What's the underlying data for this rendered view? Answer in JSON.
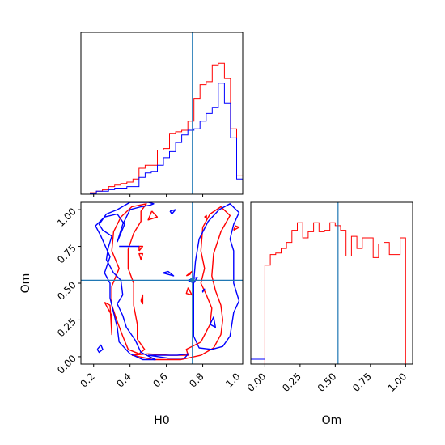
{
  "chart_data": [
    {
      "type": "histogram",
      "panel": "H0 marginal",
      "series": [
        {
          "color": "#ff0000",
          "values": [
            0,
            0.01,
            0.02,
            0.03,
            0.05,
            0.06,
            0.07,
            0.08,
            0.1,
            0.17,
            0.19,
            0.19,
            0.29,
            0.3,
            0.4,
            0.41,
            0.42,
            0.48,
            0.63,
            0.72,
            0.74,
            0.85,
            0.86,
            0.76,
            0.43,
            0.12
          ]
        },
        {
          "color": "#0000ff",
          "values": [
            0,
            0.005,
            0.02,
            0.02,
            0.03,
            0.04,
            0.04,
            0.05,
            0.05,
            0.11,
            0.14,
            0.15,
            0.19,
            0.24,
            0.28,
            0.34,
            0.39,
            0.42,
            0.43,
            0.48,
            0.53,
            0.57,
            0.73,
            0.6,
            0.37,
            0.1
          ]
        }
      ],
      "truth": 0.743
    },
    {
      "type": "contour",
      "panel": "Om vs H0",
      "xlabel": "H0",
      "ylabel": "Om",
      "xticks": [
        "0.2",
        "0.4",
        "0.6",
        "0.8",
        "1.0"
      ],
      "yticks": [
        "0.00",
        "0.25",
        "0.50",
        "0.75",
        "1.00"
      ],
      "xlim": [
        0.13,
        1.02
      ],
      "ylim": [
        -0.05,
        1.05
      ],
      "series": [
        {
          "color": "#ff0000",
          "contours": [
            [
              [
                0.46,
                0.99
              ],
              [
                0.49,
                1.04
              ],
              [
                0.41,
                1.02
              ],
              [
                0.35,
                0.95
              ],
              [
                0.31,
                0.85
              ],
              [
                0.3,
                0.72
              ],
              [
                0.34,
                0.6
              ],
              [
                0.3,
                0.48
              ],
              [
                0.3,
                0.35
              ],
              [
                0.33,
                0.24
              ],
              [
                0.36,
                0.14
              ],
              [
                0.39,
                0.05
              ],
              [
                0.45,
                0.02
              ],
              [
                0.48,
                0.05
              ],
              [
                0.44,
                0.12
              ],
              [
                0.44,
                0.22
              ],
              [
                0.42,
                0.35
              ],
              [
                0.42,
                0.5
              ],
              [
                0.39,
                0.6
              ],
              [
                0.39,
                0.73
              ],
              [
                0.42,
                0.84
              ],
              [
                0.46,
                0.92
              ],
              [
                0.46,
                0.99
              ]
            ],
            [
              [
                0.41,
                0.01
              ],
              [
                0.53,
                -0.02
              ],
              [
                0.68,
                -0.02
              ],
              [
                0.79,
                0.01
              ],
              [
                0.86,
                0.06
              ],
              [
                0.9,
                0.15
              ],
              [
                0.91,
                0.25
              ],
              [
                0.9,
                0.35
              ],
              [
                0.87,
                0.45
              ],
              [
                0.85,
                0.55
              ],
              [
                0.86,
                0.7
              ],
              [
                0.9,
                0.85
              ],
              [
                0.95,
                0.96
              ],
              [
                0.9,
                1.02
              ],
              [
                0.84,
                0.97
              ],
              [
                0.8,
                0.88
              ],
              [
                0.79,
                0.72
              ],
              [
                0.81,
                0.6
              ],
              [
                0.79,
                0.5
              ],
              [
                0.82,
                0.42
              ],
              [
                0.85,
                0.33
              ],
              [
                0.84,
                0.22
              ],
              [
                0.79,
                0.1
              ],
              [
                0.71,
                0.05
              ],
              [
                0.72,
                0.01
              ],
              [
                0.62,
                0.01
              ],
              [
                0.5,
                0.02
              ],
              [
                0.41,
                0.01
              ]
            ],
            [
              [
                0.26,
                0.37
              ],
              [
                0.3,
                0.28
              ],
              [
                0.3,
                0.15
              ],
              [
                0.29,
                0.35
              ],
              [
                0.26,
                0.37
              ]
            ],
            [
              [
                0.81,
                0.95
              ],
              [
                0.82,
                0.96
              ],
              [
                0.82,
                0.94
              ],
              [
                0.81,
                0.95
              ]
            ],
            [
              [
                0.97,
                0.86
              ],
              [
                1.0,
                0.88
              ],
              [
                0.98,
                0.89
              ],
              [
                0.97,
                0.86
              ]
            ],
            [
              [
                0.52,
                0.99
              ],
              [
                0.55,
                0.95
              ],
              [
                0.5,
                0.93
              ],
              [
                0.52,
                0.99
              ]
            ],
            [
              [
                0.45,
                0.72
              ],
              [
                0.47,
                0.75
              ],
              [
                0.45,
                0.75
              ],
              [
                0.45,
                0.72
              ]
            ],
            [
              [
                0.46,
                0.66
              ],
              [
                0.47,
                0.7
              ],
              [
                0.45,
                0.7
              ],
              [
                0.46,
                0.66
              ]
            ],
            [
              [
                0.46,
                0.38
              ],
              [
                0.47,
                0.42
              ],
              [
                0.47,
                0.36
              ],
              [
                0.46,
                0.38
              ]
            ],
            [
              [
                0.71,
                0.55
              ],
              [
                0.74,
                0.58
              ],
              [
                0.73,
                0.56
              ],
              [
                0.71,
                0.55
              ]
            ],
            [
              [
                0.72,
                0.47
              ],
              [
                0.74,
                0.42
              ],
              [
                0.71,
                0.43
              ],
              [
                0.72,
                0.47
              ]
            ]
          ]
        },
        {
          "color": "#0000ff",
          "contours": [
            [
              [
                0.33,
                0.78
              ],
              [
                0.36,
                0.9
              ],
              [
                0.4,
                1.0
              ],
              [
                0.46,
                1.02
              ],
              [
                0.51,
                1.03
              ],
              [
                0.53,
                1.04
              ],
              [
                0.5,
                1.05
              ],
              [
                0.4,
                1.05
              ],
              [
                0.33,
                1.0
              ],
              [
                0.27,
                0.97
              ],
              [
                0.23,
                0.9
              ],
              [
                0.25,
                0.86
              ],
              [
                0.3,
                0.82
              ],
              [
                0.28,
                0.74
              ],
              [
                0.27,
                0.66
              ],
              [
                0.31,
                0.57
              ],
              [
                0.35,
                0.52
              ],
              [
                0.36,
                0.42
              ],
              [
                0.33,
                0.36
              ],
              [
                0.36,
                0.28
              ],
              [
                0.38,
                0.2
              ],
              [
                0.43,
                0.11
              ],
              [
                0.46,
                0.03
              ],
              [
                0.54,
                -0.02
              ],
              [
                0.47,
                -0.02
              ],
              [
                0.4,
                0.02
              ],
              [
                0.34,
                0.1
              ],
              [
                0.33,
                0.2
              ],
              [
                0.31,
                0.3
              ],
              [
                0.29,
                0.4
              ],
              [
                0.29,
                0.5
              ],
              [
                0.26,
                0.57
              ],
              [
                0.29,
                0.68
              ],
              [
                0.24,
                0.82
              ],
              [
                0.21,
                0.89
              ],
              [
                0.26,
                0.95
              ],
              [
                0.33,
                0.97
              ],
              [
                0.37,
                0.9
              ],
              [
                0.33,
                0.78
              ]
            ],
            [
              [
                0.75,
                0.14
              ],
              [
                0.78,
                0.06
              ],
              [
                0.85,
                0.05
              ],
              [
                0.91,
                0.07
              ],
              [
                0.95,
                0.14
              ],
              [
                0.97,
                0.3
              ],
              [
                1.0,
                0.38
              ],
              [
                0.97,
                0.5
              ],
              [
                0.97,
                0.6
              ],
              [
                0.97,
                0.72
              ],
              [
                0.95,
                0.8
              ],
              [
                0.97,
                0.9
              ],
              [
                1.0,
                0.98
              ],
              [
                0.95,
                1.04
              ],
              [
                0.89,
                1.0
              ],
              [
                0.83,
                0.92
              ],
              [
                0.78,
                0.8
              ],
              [
                0.76,
                0.65
              ],
              [
                0.75,
                0.5
              ],
              [
                0.75,
                0.35
              ],
              [
                0.75,
                0.25
              ],
              [
                0.75,
                0.14
              ]
            ],
            [
              [
                0.22,
                0.05
              ],
              [
                0.24,
                0.08
              ],
              [
                0.25,
                0.05
              ],
              [
                0.23,
                0.03
              ],
              [
                0.22,
                0.05
              ]
            ],
            [
              [
                0.34,
                0.75
              ],
              [
                0.45,
                0.75
              ]
            ],
            [
              [
                0.5,
                0.01
              ],
              [
                0.61,
                -0.01
              ],
              [
                0.7,
                -0.01
              ],
              [
                0.72,
                0.02
              ],
              [
                0.66,
                0.01
              ],
              [
                0.55,
                0.01
              ],
              [
                0.5,
                0.01
              ]
            ],
            [
              [
                0.58,
                0.57
              ],
              [
                0.64,
                0.55
              ],
              [
                0.61,
                0.58
              ],
              [
                0.58,
                0.57
              ]
            ],
            [
              [
                0.72,
                0.52
              ],
              [
                0.77,
                0.54
              ],
              [
                0.75,
                0.5
              ],
              [
                0.72,
                0.52
              ]
            ],
            [
              [
                0.62,
                0.99
              ],
              [
                0.65,
                1.0
              ],
              [
                0.63,
                0.97
              ],
              [
                0.62,
                0.99
              ]
            ],
            [
              [
                0.84,
                0.22
              ],
              [
                0.86,
                0.27
              ],
              [
                0.87,
                0.2
              ],
              [
                0.84,
                0.22
              ]
            ],
            [
              [
                0.8,
                0.45
              ],
              [
                0.81,
                0.46
              ],
              [
                0.8,
                0.44
              ],
              [
                0.8,
                0.45
              ]
            ]
          ]
        }
      ],
      "truth": {
        "x": 0.743,
        "y": 0.52
      }
    },
    {
      "type": "histogram",
      "panel": "Om marginal",
      "xlabel": "Om",
      "xticks": [
        "0.00",
        "0.25",
        "0.50",
        "0.75",
        "1.00"
      ],
      "xlim": [
        -0.1,
        1.05
      ],
      "series": [
        {
          "color": "#ff0000",
          "values": [
            0.65,
            0.72,
            0.73,
            0.76,
            0.8,
            0.88,
            0.93,
            0.83,
            0.87,
            0.93,
            0.87,
            0.88,
            0.93,
            0.91,
            0.88,
            0.71,
            0.84,
            0.76,
            0.83,
            0.83,
            0.7,
            0.79,
            0.8,
            0.72,
            0.72,
            0.83
          ]
        },
        {
          "color": "#0000ff",
          "values": [
            0.5,
            0.59,
            0.6,
            0.62,
            0.64,
            0.66,
            0.66,
            0.68,
            0.72,
            0.74,
            0.72,
            0.72,
            0.71,
            0.71,
            0.71,
            0.81,
            0.7,
            0.62,
            0.58,
            0.62,
            0.52,
            0.57,
            0.53,
            0.52,
            0.52,
            0.36
          ]
        }
      ],
      "truth": 0.52
    }
  ]
}
